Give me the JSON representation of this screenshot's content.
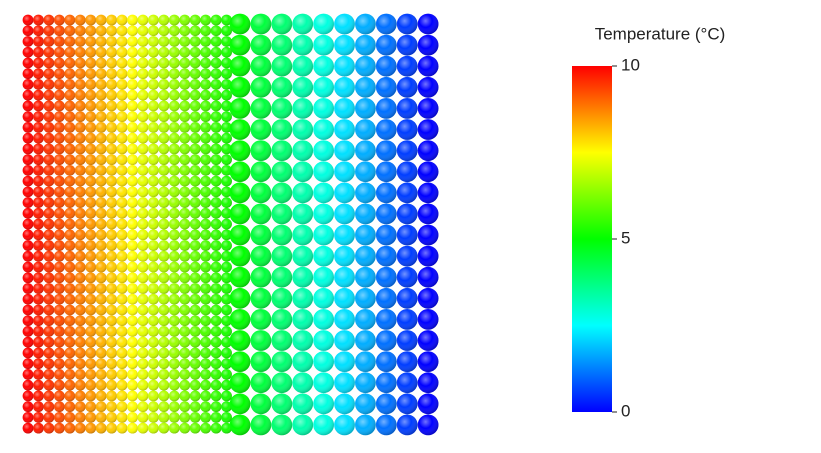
{
  "chart_data": {
    "type": "sphere-grid",
    "colorbar_title": "Temperature (°C)",
    "clim": [
      0,
      10
    ],
    "cticks": [
      0,
      5,
      10
    ],
    "colormap": [
      "#0000ff",
      "#00ffff",
      "#00ff00",
      "#ffff00",
      "#ff0000"
    ],
    "groups": [
      {
        "values": [
          10,
          9.75,
          9.5,
          9.25,
          9,
          8.75,
          8.5,
          8.25,
          8,
          7.75,
          7.5,
          7.25,
          7,
          6.75,
          6.5,
          6.25,
          6,
          5.75,
          5.5,
          5.25
        ]
      },
      {
        "values": [
          5,
          4.4,
          3.9,
          3.3,
          2.8,
          2.2,
          1.7,
          1.1,
          0.6,
          0
        ]
      }
    ]
  }
}
